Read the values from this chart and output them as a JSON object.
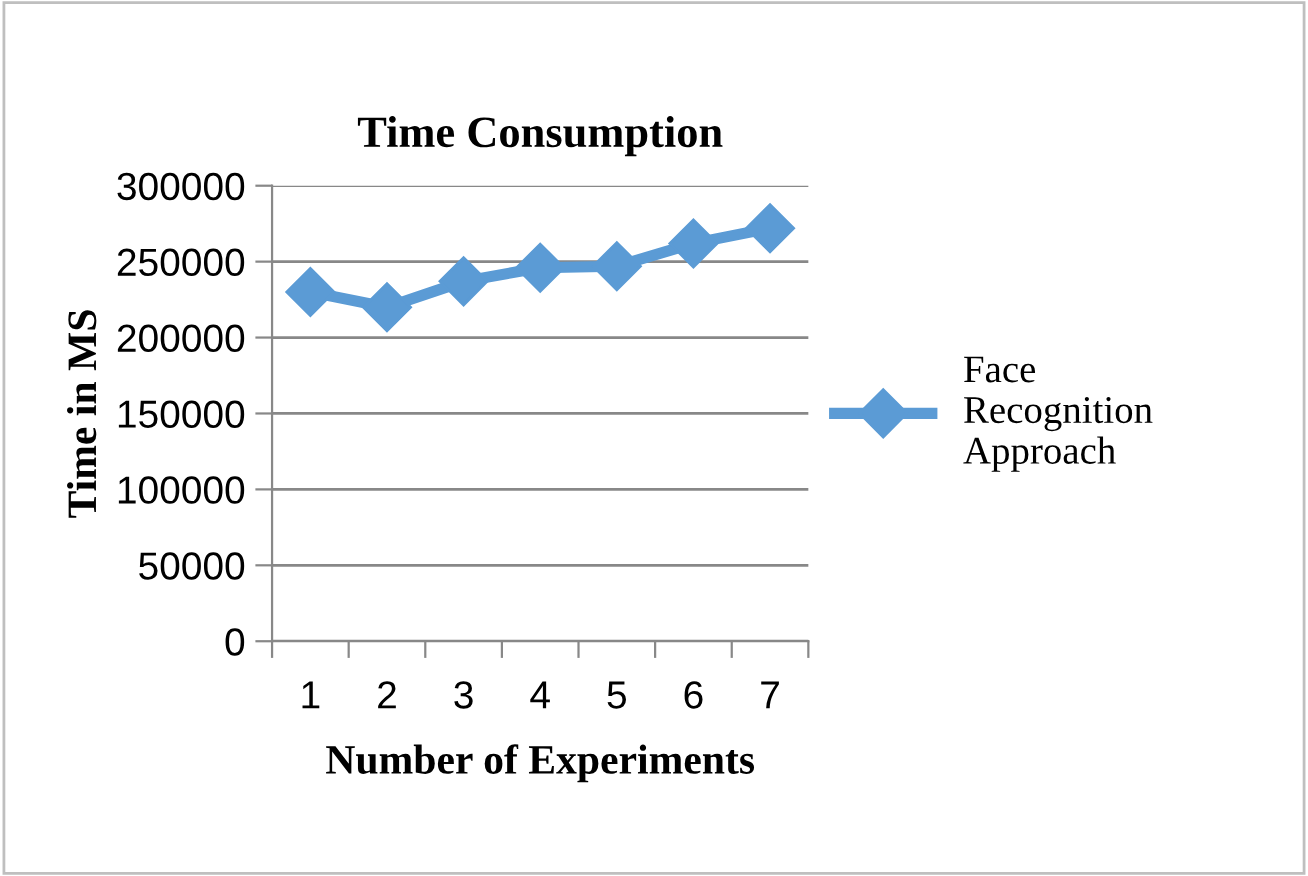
{
  "chart_data": {
    "type": "line",
    "title": "Time Consumption",
    "xlabel": "Number of Experiments",
    "ylabel": "Time in MS",
    "categories": [
      "1",
      "2",
      "3",
      "4",
      "5",
      "6",
      "7"
    ],
    "series": [
      {
        "name": "Face Recognition Approach",
        "color": "#5b9bd5",
        "values": [
          230000,
          220000,
          237000,
          246000,
          247000,
          262000,
          272000
        ]
      }
    ],
    "ylim": [
      0,
      300000
    ],
    "yticks": [
      0,
      50000,
      100000,
      150000,
      200000,
      250000,
      300000
    ],
    "grid": "y",
    "legend": "right",
    "marker": "diamond"
  }
}
